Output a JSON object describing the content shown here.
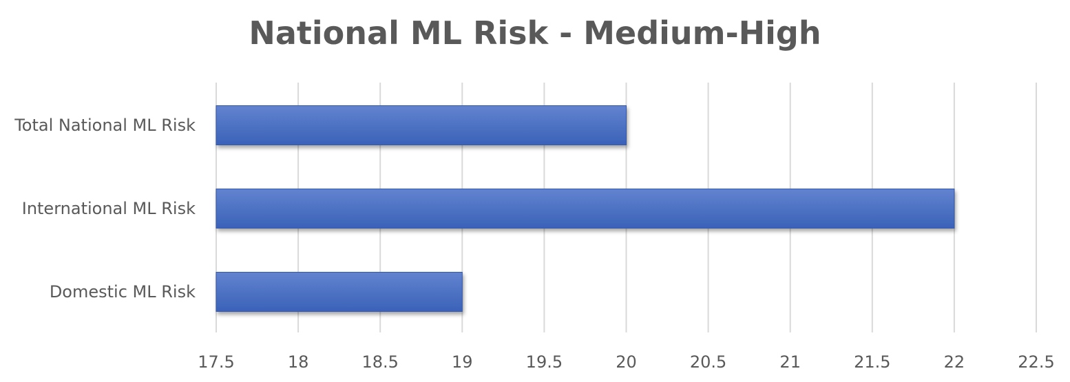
{
  "chart_data": {
    "type": "bar",
    "orientation": "horizontal",
    "title": "National ML Risk - Medium-High",
    "categories": [
      "Total National ML Risk",
      "International ML Risk",
      "Domestic ML Risk"
    ],
    "values": [
      20,
      22,
      19
    ],
    "xlabel": "",
    "ylabel": "",
    "xlim": [
      17.5,
      22.5
    ],
    "x_ticks": [
      "17.5",
      "18",
      "18.5",
      "19",
      "19.5",
      "20",
      "20.5",
      "21",
      "21.5",
      "22",
      "22.5"
    ],
    "grid": true,
    "legend": "none",
    "colors": {
      "bar_top": "#6283cf",
      "bar_bottom": "#3a62b8",
      "bar_edge": "#3559aa",
      "gridline": "#d9d9d9",
      "text": "#595959"
    }
  }
}
